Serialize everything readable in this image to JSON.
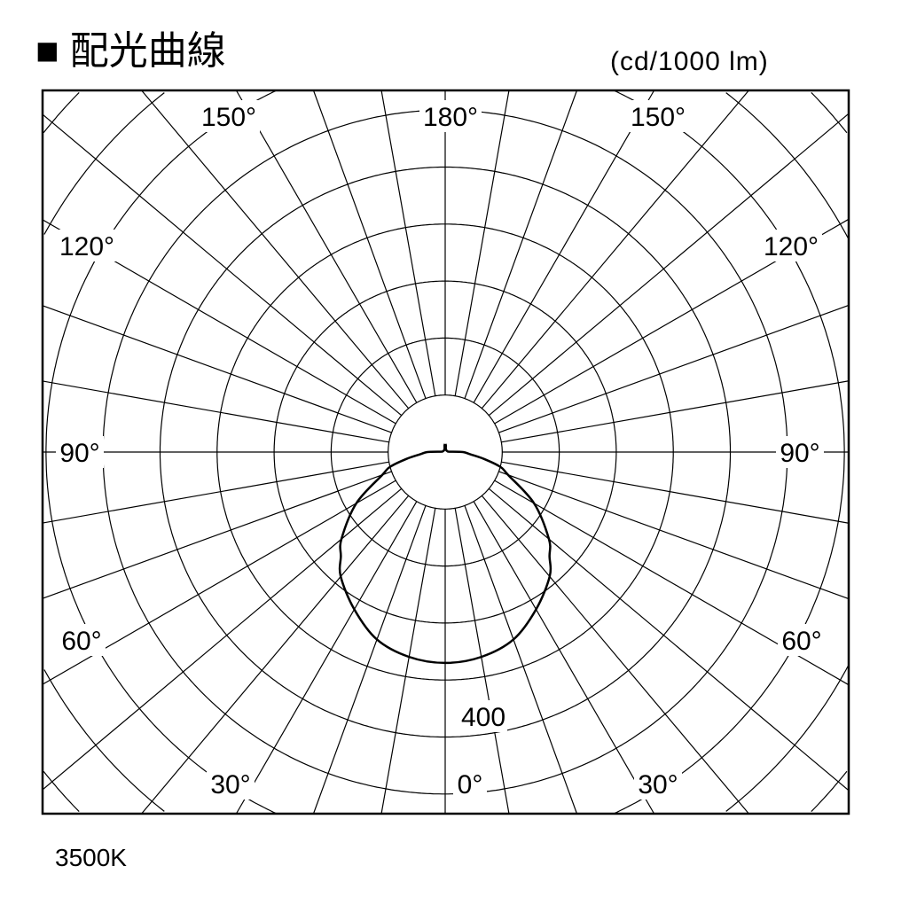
{
  "title": "■ 配光曲線",
  "unit": "(cd/1000 lm)",
  "footnote": "3500K",
  "chart_data": {
    "type": "polar",
    "title": "配光曲線",
    "unit_label": "(cd/1000 lm)",
    "radial_tick_label": "400",
    "radial_tick_value": 400,
    "ring_step": 80,
    "radial_range": [
      0,
      720
    ],
    "angle_step_deg": 10,
    "angle_labels": {
      "left": [
        "0°",
        "30°",
        "60°",
        "90°",
        "120°",
        "150°",
        "180°"
      ],
      "right": [
        "30°",
        "60°",
        "90°",
        "120°",
        "150°"
      ]
    },
    "grid": true,
    "series": [
      {
        "angles_deg": [
          0,
          10,
          20,
          30,
          40,
          45,
          50,
          60,
          70,
          75,
          80,
          85,
          90,
          95,
          100,
          120,
          150,
          170,
          175,
          180
        ],
        "values": [
          296,
          292,
          280,
          255,
          228,
          207,
          190,
          144,
          94,
          80,
          55,
          35,
          25,
          6,
          4,
          3,
          3,
          5,
          10,
          11
        ],
        "color": "#000000"
      }
    ],
    "caption": "3500K"
  }
}
